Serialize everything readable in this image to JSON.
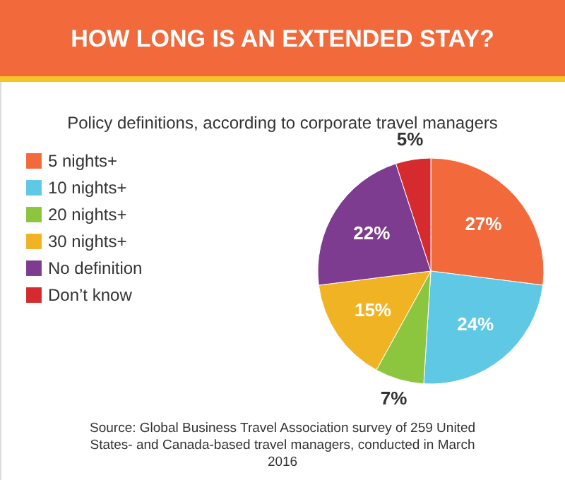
{
  "chart_data": {
    "type": "pie",
    "title": "HOW LONG IS AN EXTENDED STAY?",
    "subtitle": "Policy definitions, according to corporate travel managers",
    "categories": [
      "5 nights+",
      "10 nights+",
      "20 nights+",
      "30 nights+",
      "No definition",
      "Don’t know"
    ],
    "values": [
      27,
      24,
      7,
      15,
      22,
      5
    ],
    "value_labels": [
      "27%",
      "24%",
      "7%",
      "15%",
      "22%",
      "5%"
    ],
    "colors": [
      "#f26a3b",
      "#5ec8e5",
      "#8cc63f",
      "#f0b323",
      "#7d3c8f",
      "#d52b2e"
    ],
    "legend": "left",
    "annotations": [
      "Source: Global Business Travel Association survey of 259 United States- and Canada-based travel managers, conducted in March 2016"
    ]
  }
}
